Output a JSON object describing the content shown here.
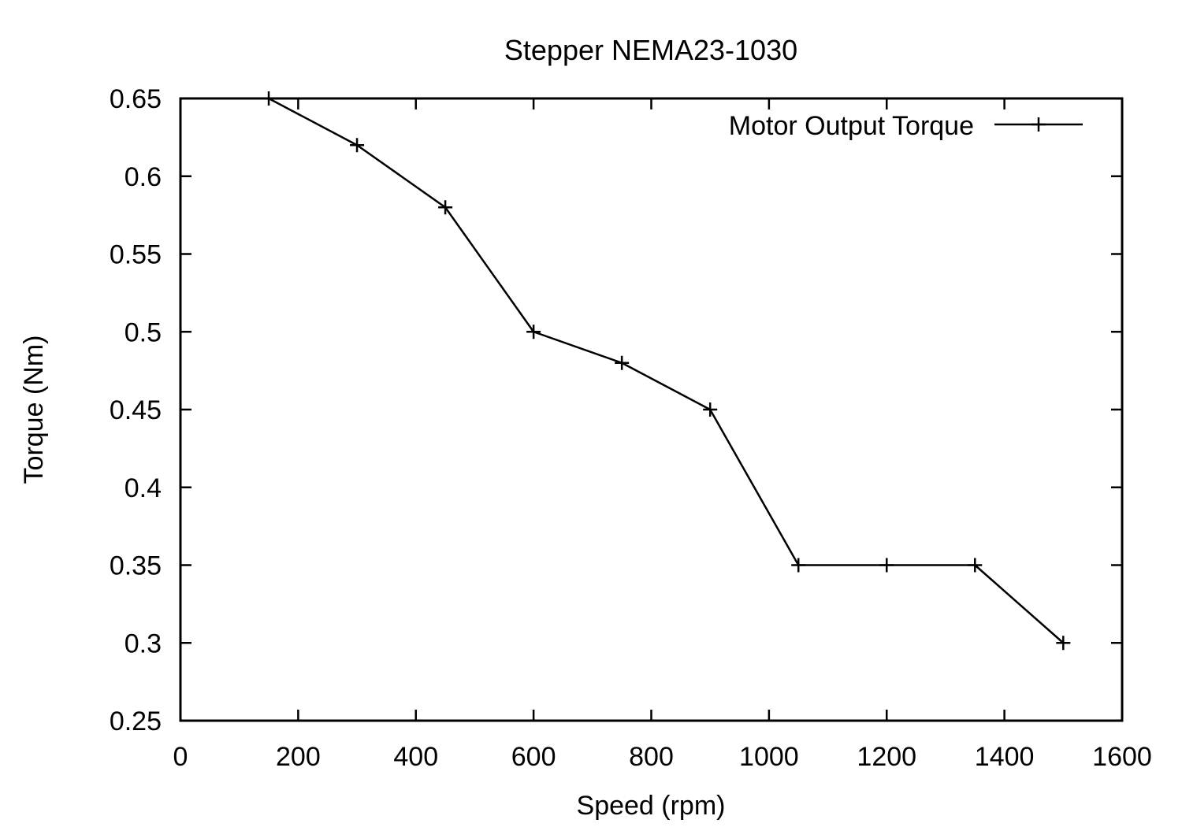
{
  "chart_data": {
    "type": "line",
    "title": "Stepper NEMA23-1030",
    "xlabel": "Speed (rpm)",
    "ylabel": "Torque (Nm)",
    "xlim": [
      0,
      1600
    ],
    "ylim": [
      0.25,
      0.65
    ],
    "xticks": [
      0,
      200,
      400,
      600,
      800,
      1000,
      1200,
      1400,
      1600
    ],
    "xtick_labels": [
      "0",
      "200",
      "400",
      "600",
      "800",
      "1000",
      "1200",
      "1400",
      "1600"
    ],
    "yticks": [
      0.25,
      0.3,
      0.35,
      0.4,
      0.45,
      0.5,
      0.55,
      0.6,
      0.65
    ],
    "ytick_labels": [
      "0.25",
      "0.3",
      "0.35",
      "0.4",
      "0.45",
      "0.5",
      "0.55",
      "0.6",
      "0.65"
    ],
    "grid": false,
    "legend_position": "top-right",
    "line_color": "#000000",
    "marker": "plus",
    "series": [
      {
        "name": "Motor Output Torque",
        "x": [
          150,
          300,
          450,
          600,
          750,
          900,
          1050,
          1200,
          1350,
          1500
        ],
        "y": [
          0.65,
          0.62,
          0.58,
          0.5,
          0.48,
          0.45,
          0.35,
          0.35,
          0.35,
          0.3
        ]
      }
    ]
  }
}
